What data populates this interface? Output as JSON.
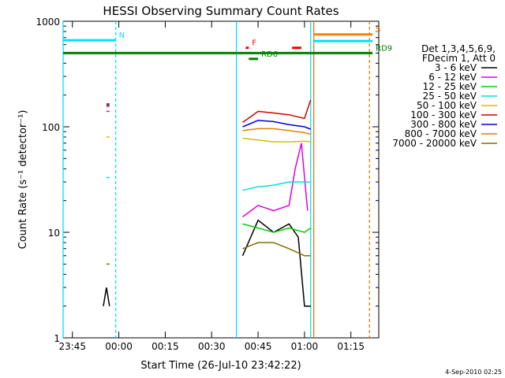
{
  "chart_data": {
    "type": "line",
    "title": "HESSI Observing Summary Count Rates",
    "xlabel": "Start Time (26-Jul-10 23:42:22)",
    "ylabel": "Count Rate (s⁻¹ detector⁻¹)",
    "y_scale": "log",
    "ylim": [
      1,
      1000
    ],
    "xlim": [
      "23:42",
      "01:24"
    ],
    "x_ticks": [
      "23:45",
      "00:00",
      "00:15",
      "00:30",
      "00:45",
      "01:00",
      "01:15"
    ],
    "y_ticks": [
      "1",
      "10",
      "100",
      "1000"
    ],
    "legend_header": [
      "Det 1,3,4,5,6,9,",
      "FDecim 1, Att 0"
    ],
    "legend_position": "right",
    "series": [
      {
        "name": "3 - 6 keV",
        "color": "#000000",
        "points": [
          [
            "23:55",
            2
          ],
          [
            "23:56",
            3
          ],
          [
            "23:57",
            2
          ],
          [
            "00:40",
            6
          ],
          [
            "00:45",
            13
          ],
          [
            "00:50",
            10
          ],
          [
            "00:55",
            12
          ],
          [
            "00:58",
            9
          ],
          [
            "01:00",
            2
          ],
          [
            "01:02",
            2
          ]
        ]
      },
      {
        "name": "6 - 12 keV",
        "color": "#e000e0",
        "points": [
          [
            "23:56",
            140
          ],
          [
            "23:57",
            140
          ],
          [
            "00:40",
            14
          ],
          [
            "00:45",
            18
          ],
          [
            "00:50",
            16
          ],
          [
            "00:55",
            18
          ],
          [
            "00:57",
            40
          ],
          [
            "00:59",
            70
          ],
          [
            "01:01",
            16
          ]
        ]
      },
      {
        "name": "12 - 25 keV",
        "color": "#00d000",
        "points": [
          [
            "00:40",
            12
          ],
          [
            "00:45",
            11
          ],
          [
            "00:50",
            10
          ],
          [
            "00:55",
            11
          ],
          [
            "01:00",
            10
          ],
          [
            "01:02",
            11
          ]
        ]
      },
      {
        "name": "25 - 50 keV",
        "color": "#00e0e0",
        "points": [
          [
            "23:56",
            33
          ],
          [
            "23:57",
            33
          ],
          [
            "00:40",
            25
          ],
          [
            "00:45",
            27
          ],
          [
            "00:50",
            28
          ],
          [
            "00:55",
            30
          ],
          [
            "01:00",
            30
          ],
          [
            "01:02",
            30
          ]
        ]
      },
      {
        "name": "50 - 100 keV",
        "color": "#d0c000",
        "points": [
          [
            "23:56",
            80
          ],
          [
            "23:57",
            80
          ],
          [
            "00:40",
            78
          ],
          [
            "00:45",
            75
          ],
          [
            "00:50",
            72
          ],
          [
            "00:55",
            72
          ],
          [
            "01:00",
            73
          ],
          [
            "01:02",
            72
          ]
        ]
      },
      {
        "name": "100 - 300 keV",
        "color": "#d00000",
        "points": [
          [
            "23:56",
            165
          ],
          [
            "23:57",
            165
          ],
          [
            "00:40",
            110
          ],
          [
            "00:45",
            140
          ],
          [
            "00:50",
            135
          ],
          [
            "00:55",
            130
          ],
          [
            "01:00",
            120
          ],
          [
            "01:02",
            180
          ]
        ]
      },
      {
        "name": "300 - 800 keV",
        "color": "#0000e0",
        "points": [
          [
            "23:56",
            160
          ],
          [
            "23:57",
            160
          ],
          [
            "00:40",
            100
          ],
          [
            "00:45",
            115
          ],
          [
            "00:50",
            112
          ],
          [
            "00:55",
            105
          ],
          [
            "01:00",
            100
          ],
          [
            "01:02",
            95
          ]
        ]
      },
      {
        "name": "800 - 7000 keV",
        "color": "#e08000",
        "points": [
          [
            "23:56",
            155
          ],
          [
            "23:57",
            155
          ],
          [
            "00:40",
            92
          ],
          [
            "00:45",
            96
          ],
          [
            "00:50",
            96
          ],
          [
            "00:55",
            92
          ],
          [
            "01:00",
            88
          ],
          [
            "01:02",
            85
          ]
        ]
      },
      {
        "name": "7000 - 20000 keV",
        "color": "#807000",
        "points": [
          [
            "23:56",
            5
          ],
          [
            "23:57",
            5
          ],
          [
            "00:40",
            7
          ],
          [
            "00:45",
            8
          ],
          [
            "00:50",
            8
          ],
          [
            "00:55",
            7
          ],
          [
            "01:00",
            6
          ],
          [
            "01:02",
            6
          ]
        ]
      }
    ],
    "flag_bars": [
      {
        "label": "N",
        "color": "#00e0ff",
        "level": 660,
        "from": "23:42",
        "to": "23:59"
      },
      {
        "label": "S",
        "color": "#ff8000",
        "level": 750,
        "from": "01:03",
        "to": "01:22"
      },
      {
        "label": "",
        "color": "#00e0ff",
        "level": 650,
        "from": "01:03",
        "to": "01:22"
      },
      {
        "label": "F",
        "color": "#ff0000",
        "level": 560,
        "from": "00:41",
        "to": "00:42"
      },
      {
        "label": "",
        "color": "#ff0000",
        "level": 560,
        "from": "00:56",
        "to": "00:59"
      },
      {
        "label": "RD9",
        "color": "#008000",
        "level": 500,
        "from": "23:42",
        "to": "01:22"
      },
      {
        "label": "RD6",
        "color": "#008000",
        "level": 440,
        "from": "00:42",
        "to": "00:45"
      }
    ],
    "vertical_markers": [
      {
        "time": "23:42",
        "color": "#00e0ff",
        "style": "solid"
      },
      {
        "time": "23:59",
        "color": "#00e0ff",
        "style": "dashed"
      },
      {
        "time": "00:38",
        "color": "#00e0ff",
        "style": "solid"
      },
      {
        "time": "01:02",
        "color": "#00e0ff",
        "style": "solid"
      },
      {
        "time": "01:03",
        "color": "#e08000",
        "style": "solid"
      },
      {
        "time": "01:21",
        "color": "#e08000",
        "style": "dashed"
      }
    ],
    "footer_date": "4-Sep-2010 02:25"
  }
}
